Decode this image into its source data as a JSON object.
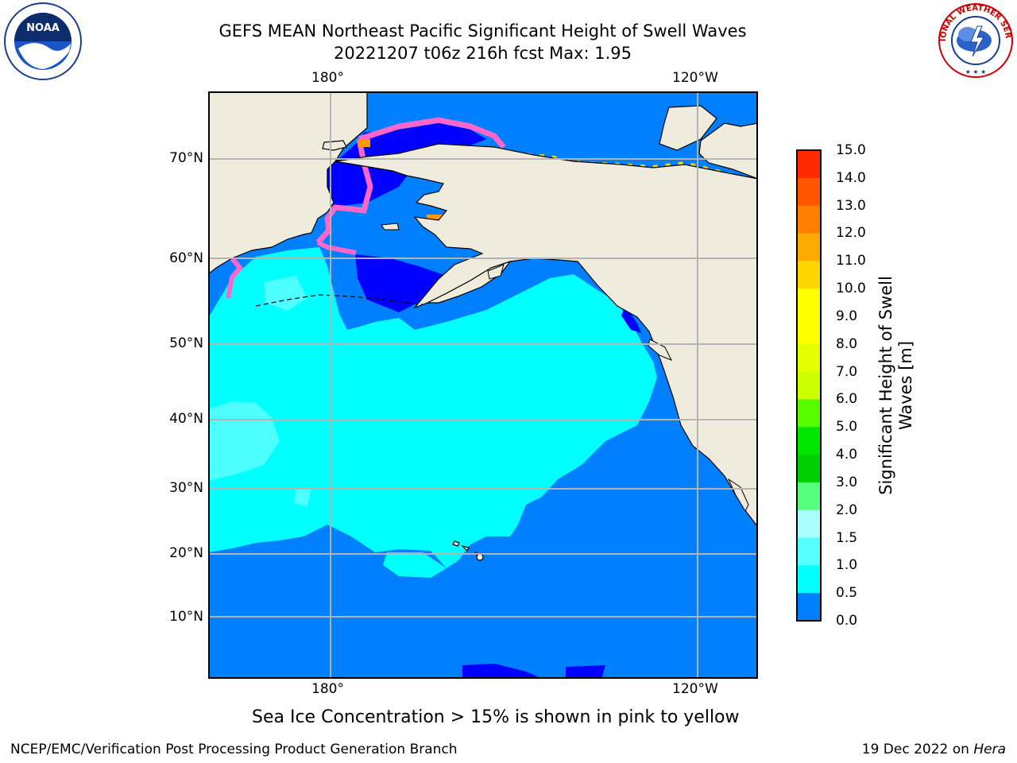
{
  "title": {
    "line1": "GEFS MEAN Northeast Pacific Significant Height of Swell Waves",
    "line2": "20221207 t06z 216h fcst   Max: 1.95"
  },
  "map": {
    "lon_labels_top": [
      "180°",
      "120°W"
    ],
    "lon_labels_bottom": [
      "180°",
      "120°W"
    ],
    "lat_labels": [
      "70°N",
      "60°N",
      "50°N",
      "40°N",
      "30°N",
      "20°N",
      "10°N"
    ],
    "colors": {
      "land": "#efecdd",
      "ocean_0_0.5": "#0000ff",
      "ocean_0.5_1.0": "#0080ff",
      "ocean_1.0_1.5": "#00ffff",
      "ocean_1.5_2.0": "#4dffff",
      "ice_pink": "#ff66cc",
      "ice_yellow": "#ffd700"
    }
  },
  "colorbar": {
    "title_line1": "Significant Height of Swell",
    "title_line2": "Waves [m]",
    "ticks": [
      "15.0",
      "14.0",
      "13.0",
      "12.0",
      "11.0",
      "10.0",
      "9.0",
      "8.0",
      "7.0",
      "6.0",
      "5.0",
      "4.0",
      "3.0",
      "2.0",
      "1.5",
      "1.0",
      "0.5",
      "0.0"
    ],
    "colors_top_to_bottom": [
      "#ff0000",
      "#ff2a00",
      "#ff5500",
      "#ff8000",
      "#ffaa00",
      "#ffd500",
      "#ffff00",
      "#ffff00",
      "#e6ff00",
      "#ccff00",
      "#55ff00",
      "#00e600",
      "#00d000",
      "#55ff80",
      "#aaffff",
      "#55ffff",
      "#00ffff",
      "#0080ff",
      "#0000ff"
    ]
  },
  "ice_note": "Sea Ice Concentration > 15% is shown in pink to yellow",
  "footer": {
    "left": "NCEP/EMC/Verification Post Processing Product Generation Branch",
    "right_date": "19 Dec 2022 on",
    "right_host": "Hera"
  },
  "logos": {
    "noaa_text": "NOAA",
    "nws_text": "NATIONAL WEATHER SERVICE"
  }
}
